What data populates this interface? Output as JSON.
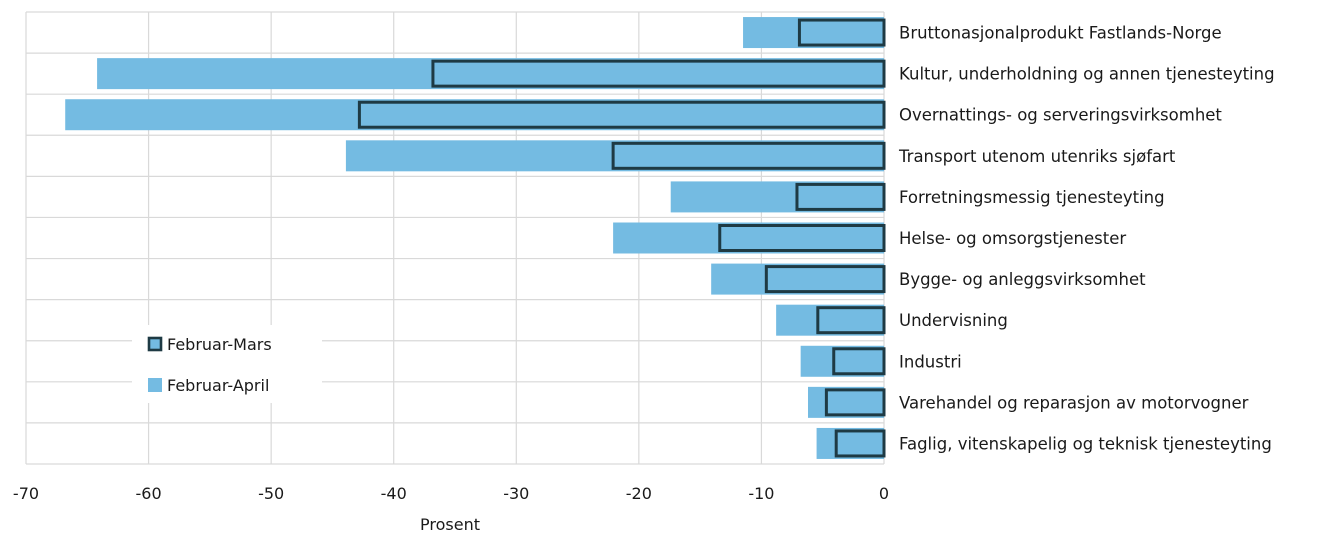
{
  "chart_data": {
    "type": "bar",
    "orientation": "horizontal",
    "xlabel": "Prosent",
    "xlim": [
      -70,
      0
    ],
    "xticks": [
      -70,
      -60,
      -50,
      -40,
      -30,
      -20,
      -10,
      0
    ],
    "grid": true,
    "legend_position": "left",
    "categories": [
      "Bruttonasjonalprodukt Fastlands-Norge",
      "Kultur, underholdning og annen tjenesteyting",
      "Overnattings- og serveringsvirksomhet",
      "Transport utenom utenriks sjøfart",
      "Forretningsmessig tjenesteyting",
      "Helse- og omsorgstjenester",
      "Bygge- og anleggsvirksomhet",
      "Undervisning",
      "Industri",
      "Varehandel og reparasjon av motorvogner",
      "Faglig, vitenskapelig og teknisk tjenesteyting"
    ],
    "series": [
      {
        "name": "Februar-April",
        "color": "#74bbe2",
        "style": "filled",
        "values": [
          -11.5,
          -64.2,
          -66.8,
          -43.9,
          -17.4,
          -22.1,
          -14.1,
          -8.8,
          -6.8,
          -6.2,
          -5.5
        ]
      },
      {
        "name": "Februar-Mars",
        "color": "#74bbe2",
        "edge_color": "#1e3a44",
        "style": "outlined",
        "values": [
          -6.9,
          -36.8,
          -42.8,
          -22.1,
          -7.1,
          -13.4,
          -9.6,
          -5.4,
          -4.1,
          -4.7,
          -3.9
        ]
      }
    ]
  }
}
